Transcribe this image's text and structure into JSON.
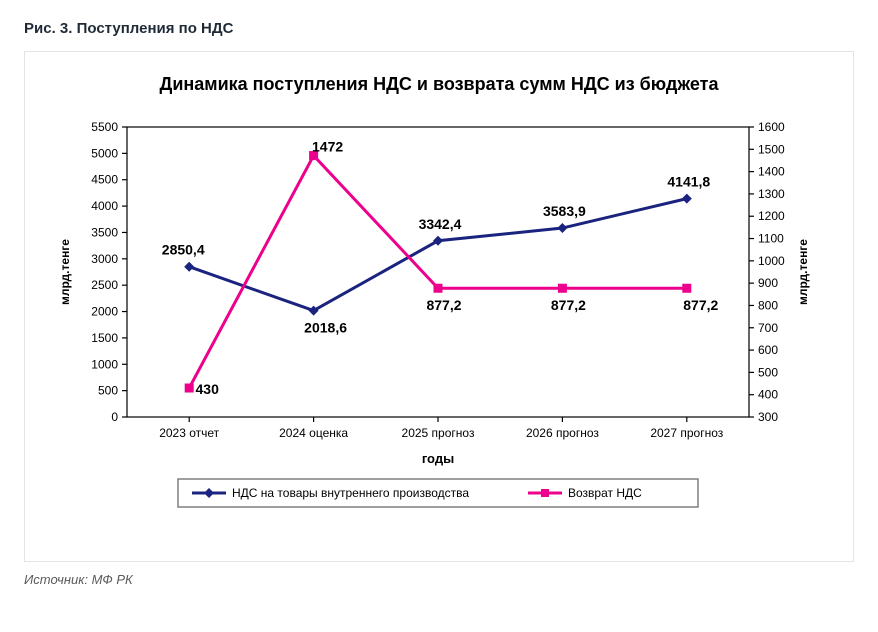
{
  "figure_caption": "Рис. 3. Поступления по НДС",
  "source": "Источник: МФ РК",
  "chart": {
    "type": "line-dual-axis",
    "title": "Динамика поступления НДС и возврата сумм НДС из бюджета",
    "x_axis": {
      "title": "годы",
      "categories": [
        "2023 отчет",
        "2024 оценка",
        "2025 прогноз",
        "2026 прогноз",
        "2027 прогноз"
      ]
    },
    "y_left": {
      "title": "млрд.тенге",
      "min": 0,
      "max": 5500,
      "step": 500
    },
    "y_right": {
      "title": "млрд.тенге",
      "min": 300,
      "max": 1600,
      "step": 100
    },
    "series": [
      {
        "name": "НДС на товары внутреннего производства",
        "axis": "left",
        "color": "#1a237e",
        "marker": "diamond",
        "values": [
          2850.4,
          2018.6,
          3342.4,
          3583.9,
          4141.8
        ],
        "labels": [
          "2850,4",
          "2018,6",
          "3342,4",
          "3583,9",
          "4141,8"
        ],
        "label_dx": [
          -6,
          12,
          2,
          2,
          2
        ],
        "label_dy": [
          -12,
          22,
          -12,
          -12,
          -12
        ]
      },
      {
        "name": "Возврат НДС",
        "axis": "right",
        "color": "#ec008c",
        "marker": "square",
        "values": [
          430,
          1472,
          877.2,
          877.2,
          877.2
        ],
        "labels": [
          "430",
          "1472",
          "877,2",
          "877,2",
          "877,2"
        ],
        "label_dx": [
          18,
          14,
          6,
          6,
          14
        ],
        "label_dy": [
          6,
          -4,
          22,
          22,
          22
        ]
      }
    ],
    "line_width": 3,
    "marker_size": 10,
    "background_color": "#ffffff",
    "plot_border_color": "#000000",
    "tick_color": "#000000",
    "title_fontsize": 18,
    "axis_label_fontsize": 12,
    "data_label_fontsize": 14
  }
}
